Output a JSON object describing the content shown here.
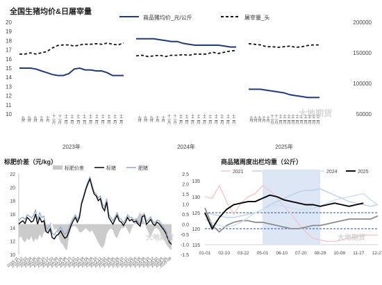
{
  "panel_top": {
    "title": "全国生猪均价&日屠宰量",
    "legend_price": "商品猪均价_元/公斤",
    "legend_slaughter": "屠宰量_头",
    "watermark": "大地期货"
  },
  "panel_left": {
    "title": "标肥价差（元/kg）",
    "legend": [
      "标肥价差",
      "标猪",
      "肥猪"
    ],
    "watermark": "大地期货"
  },
  "panel_right": {
    "title": "商品猪周度出栏均重（公斤）",
    "watermark": "大地期货"
  },
  "colors": {
    "price_line": "#1f3a7a",
    "slaughter_line": "#111111",
    "spread_area": "#c8c8c8",
    "standard_pig": "#000000",
    "fat_pig": "#8ea9cc",
    "w2021": "#f2c4c4",
    "w2022": "#b9cde8",
    "w2023": "#8c8c8c",
    "w2024": "#c9ddee",
    "w2025": "#000000",
    "band": "#dce6f5",
    "ref_line": "#2c4d9b"
  },
  "chart_data": [
    {
      "type": "line",
      "title": "全国生猪均价&日屠宰量",
      "y_left": {
        "min": 10,
        "max": 20,
        "ticks": [
          "10",
          "11",
          "12",
          "13",
          "14",
          "15",
          "16",
          "17",
          "18",
          "19",
          "20"
        ]
      },
      "y_right": {
        "min": 50000,
        "max": 200000,
        "ticks": [
          "50000",
          "100000",
          "150000",
          "200000"
        ]
      },
      "year_groups": [
        {
          "label": "2023年",
          "ticks": [
            "九月",
            "九月",
            "九月",
            "十月",
            "十月",
            "十一月",
            "十一月",
            "十二月",
            "十二月",
            "十二月",
            "十二月",
            "十二月",
            "十二月",
            "十二月",
            "十二月",
            "十二月",
            "十二月"
          ]
        },
        {
          "label": "2024年",
          "ticks": [
            "九月",
            "九月",
            "九月",
            "十月",
            "十月",
            "十一月",
            "十一月",
            "十二月",
            "十二月",
            "十二月",
            "十二月",
            "十二月",
            "十二月",
            "十二月",
            "十二月",
            "十二月",
            "十二月"
          ]
        },
        {
          "label": "2025年",
          "ticks": [
            "九月",
            "九月",
            "九月",
            "十月",
            "十月",
            "十一月",
            "十一月",
            "十二月",
            "十二月",
            "十二月",
            "十二月",
            "十二月",
            "十二月",
            "十二月",
            "十二月",
            "十二月",
            "十二月"
          ]
        }
      ],
      "series": [
        {
          "name": "商品猪均价_元/公斤",
          "axis": "left",
          "segments": [
            [
              15.0,
              15.0,
              15.0,
              14.9,
              14.7,
              14.5,
              14.3,
              14.2,
              14.2,
              14.4,
              14.9,
              15.0,
              14.8,
              14.8,
              14.7,
              14.7,
              14.5,
              14.2,
              14.2,
              14.2
            ],
            [
              18.2,
              18.2,
              18.2,
              18.2,
              18.1,
              18.0,
              17.9,
              17.9,
              17.7,
              17.6,
              17.5,
              17.5,
              17.5,
              17.5,
              17.5,
              17.4,
              17.3,
              17.3
            ],
            [
              12.7,
              12.7,
              12.7,
              12.6,
              12.5,
              12.4,
              12.3,
              12.1,
              12.0,
              11.9,
              11.8,
              11.8,
              11.8
            ]
          ]
        },
        {
          "name": "屠宰量_头",
          "axis": "right",
          "segments": [
            [
              148000,
              148000,
              150000,
              148000,
              150000,
              152000,
              158000,
              162000,
              163000,
              163000,
              161000,
              163000,
              164000,
              164000,
              165000,
              164000,
              166000,
              164000,
              163000,
              166000
            ],
            [
              145000,
              146000,
              144000,
              145000,
              146000,
              144000,
              146000,
              146000,
              147000,
              146000,
              148000,
              148000,
              148000,
              151000,
              149000,
              151000,
              153000,
              154000
            ],
            [
              165000,
              164000,
              163000,
              160000,
              160000,
              159000,
              160000,
              161000,
              159000,
              160000,
              162000,
              163000,
              163000
            ]
          ]
        }
      ]
    },
    {
      "type": "area",
      "title": "标肥价差（元/kg）",
      "y_left": {
        "min": 10,
        "max": 22,
        "ticks": [
          "10",
          "12",
          "14",
          "16",
          "18",
          "20",
          "22"
        ]
      },
      "y_right": {
        "min": -1.5,
        "max": 2.5,
        "ticks": [
          "-1.5",
          "-1.0",
          "-0.5",
          "0.0",
          "0.5",
          "1.0",
          "1.5",
          "2.0",
          "2.5"
        ]
      },
      "x_labels": [
        "2019-11",
        "2019-12",
        "2020-02",
        "2020-04",
        "2020-06",
        "2020-08",
        "2020-10",
        "2020-12",
        "2021-02",
        "2021-04",
        "2021-06",
        "2021-08",
        "2021-10",
        "2021-12",
        "2022-02",
        "2022-04",
        "2022-06",
        "2022-08",
        "2022-10",
        "2022-12",
        "2023-02",
        "2023-04",
        "2023-06",
        "2023-08",
        "2023-10",
        "2023-12",
        "2024-02",
        "2024-04",
        "2024-06",
        "2024-08",
        "2024-10",
        "2024-12",
        "2025-02",
        "2025-04",
        "2025-06",
        "2025-08"
      ],
      "series": [
        {
          "name": "标肥价差",
          "axis": "right",
          "values": [
            -0.7,
            -0.6,
            -0.8,
            -0.9,
            -0.7,
            -0.8,
            -0.6,
            -0.9,
            -0.7,
            -0.8,
            -0.5,
            -0.7,
            -0.4,
            -0.3,
            -0.4,
            0.1,
            0.0,
            -0.3,
            -0.2,
            -0.6,
            -0.9,
            -1.0,
            -1.2,
            -1.3,
            -0.6,
            -0.2,
            -0.1,
            -0.1,
            -0.2,
            -0.4,
            -0.4,
            -0.3,
            -0.2,
            -0.3,
            -0.4,
            -0.3,
            -0.5,
            -0.7,
            -0.9,
            -1.1,
            -1.2,
            -1.0,
            -0.5,
            -0.3,
            -0.2,
            -0.3,
            -0.6,
            -0.7,
            -0.4,
            -0.2,
            -0.2,
            -0.1,
            -0.3,
            -0.5,
            -0.2,
            0.0,
            0.2,
            0.4,
            0.6,
            0.3,
            0.1,
            -0.2,
            -0.4,
            -0.6,
            -0.4,
            -0.2,
            -0.2,
            -0.3,
            -0.5,
            -0.7,
            -0.9,
            -1.1,
            -1.2,
            -1.3
          ]
        },
        {
          "name": "标猪",
          "axis": "left",
          "values": [
            14.5,
            14.8,
            15.0,
            14.6,
            15.5,
            15.2,
            14.8,
            15.0,
            16.0,
            14.5,
            15.5,
            14.8,
            15.0,
            13.4,
            13.2,
            13.8,
            12.5,
            12.3,
            12.8,
            13.0,
            13.5,
            12.9,
            12.4,
            12.6,
            13.4,
            14.3,
            15.0,
            15.5,
            14.8,
            15.5,
            17.5,
            18.5,
            19.6,
            20.5,
            21.2,
            20.0,
            19.0,
            18.7,
            18.0,
            18.3,
            17.0,
            16.5,
            17.8,
            15.5,
            15.0,
            14.5,
            15.2,
            15.8,
            15.0,
            14.8,
            14.3,
            14.8,
            15.5,
            15.0,
            15.2,
            14.8,
            15.0,
            14.5,
            14.2,
            15.6,
            15.8,
            14.5,
            14.8,
            15.2,
            14.6,
            14.3,
            14.8,
            14.6,
            14.2,
            13.8,
            13.3,
            12.5,
            11.8,
            11.5
          ]
        },
        {
          "name": "肥猪",
          "axis": "left",
          "values": [
            15.0,
            15.4,
            15.5,
            15.2,
            15.9,
            15.7,
            15.4,
            15.8,
            16.6,
            15.2,
            16.2,
            15.5,
            15.7,
            14.0,
            13.8,
            14.4,
            13.2,
            12.9,
            13.4,
            13.6,
            14.1,
            13.5,
            13.0,
            13.2,
            14.0,
            14.8,
            15.4,
            15.9,
            15.2,
            15.9,
            17.8,
            18.8,
            19.9,
            20.8,
            21.5,
            20.4,
            19.3,
            19.0,
            18.4,
            18.7,
            17.5,
            17.0,
            18.3,
            16.0,
            15.5,
            15.0,
            15.6,
            16.2,
            15.4,
            15.2,
            14.7,
            15.2,
            15.9,
            15.5,
            15.5,
            15.1,
            15.3,
            14.8,
            14.5,
            15.9,
            16.1,
            14.9,
            15.2,
            15.6,
            15.0,
            14.7,
            15.1,
            15.0,
            14.6,
            14.2,
            13.7,
            13.0,
            12.4,
            12.2
          ]
        }
      ]
    },
    {
      "type": "line",
      "title": "商品猪周度出栏均重（公斤）",
      "y_left": {
        "min": 115,
        "max": 135,
        "ticks": [
          "115",
          "120",
          "125",
          "130",
          "135"
        ]
      },
      "x_labels": [
        "01-01",
        "02-10",
        "03-22",
        "05-01",
        "06-10",
        "07-20",
        "08-29",
        "10-08",
        "11-17",
        "12-27"
      ],
      "reference_lines": [
        125,
        120
      ],
      "band_x": [
        "05-01",
        "08-29"
      ],
      "series": [
        {
          "name": "2021",
          "values": [
            130.0,
            129.5,
            133.5,
            128.5,
            124.5,
            128.0,
            130.0,
            131.0,
            133.5,
            132.0,
            129.5,
            127.0,
            124.5,
            121.5,
            119.0,
            117.0,
            116.5,
            116.0,
            116.0,
            116.5,
            117.0,
            117.5,
            118.0,
            118.0,
            118.0
          ]
        },
        {
          "name": "2022",
          "values": [
            125.0,
            124.5,
            124.0,
            123.5,
            123.5,
            124.0,
            124.5,
            125.0,
            126.0,
            127.5,
            128.5,
            129.5,
            130.5,
            131.5,
            132.0,
            132.0,
            132.5,
            131.5,
            130.5,
            129.5,
            128.5,
            128.0,
            127.5,
            127.0,
            127.5
          ]
        },
        {
          "name": "2023",
          "values": [
            126.5,
            121.0,
            119.0,
            121.0,
            122.0,
            122.5,
            122.5,
            122.0,
            122.0,
            121.5,
            121.0,
            120.5,
            120.0,
            120.0,
            120.5,
            121.0,
            121.0,
            121.5,
            122.0,
            122.5,
            123.0,
            123.0,
            123.0,
            123.0,
            124.0
          ]
        },
        {
          "name": "2024",
          "values": [
            123.0,
            122.0,
            121.0,
            120.5,
            121.0,
            122.0,
            123.5,
            125.0,
            126.0,
            127.0,
            127.5,
            127.0,
            126.5,
            126.0,
            126.0,
            126.5,
            127.0,
            128.0,
            129.0,
            129.5,
            130.0,
            130.5,
            131.0,
            129.0,
            127.5
          ]
        },
        {
          "name": "2025",
          "values": [
            125.0,
            120.0,
            123.5,
            126.0,
            127.5,
            128.0,
            128.5,
            128.5,
            129.5,
            130.5,
            130.0,
            129.0,
            128.5,
            128.0,
            127.5,
            127.5,
            127.0,
            127.5,
            128.0,
            127.5,
            127.0,
            127.5,
            128.0
          ]
        }
      ]
    }
  ]
}
